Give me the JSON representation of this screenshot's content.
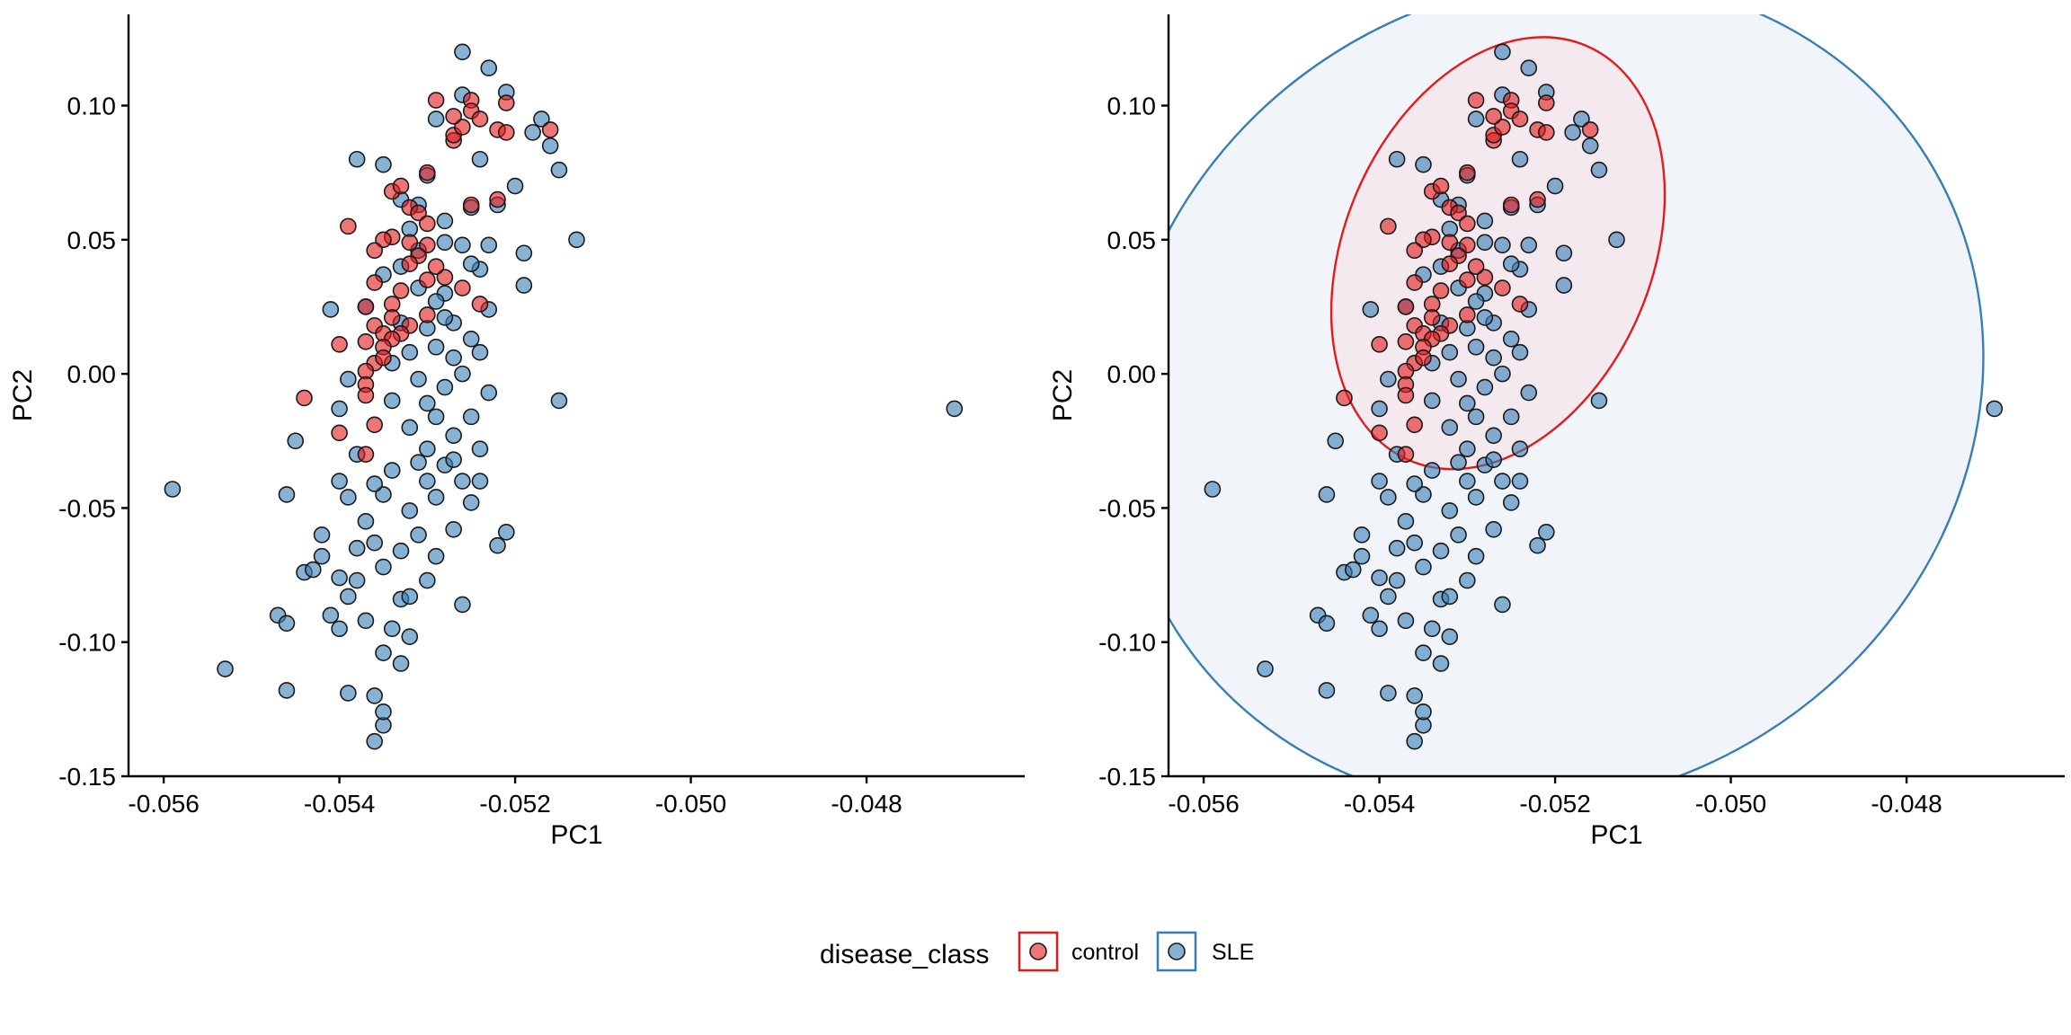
{
  "chart_data": [
    {
      "type": "scatter",
      "xlabel": "PC1",
      "ylabel": "PC2",
      "xlim": [
        -0.0564,
        -0.0462
      ],
      "ylim": [
        -0.15,
        0.134
      ],
      "x_ticks": [
        -0.056,
        -0.054,
        -0.052,
        -0.05,
        -0.048
      ],
      "x_tick_labels": [
        "-0.056",
        "-0.054",
        "-0.052",
        "-0.050",
        "-0.048"
      ],
      "y_ticks": [
        -0.15,
        -0.1,
        -0.05,
        0.0,
        0.05,
        0.1
      ],
      "y_tick_labels": [
        "-0.15",
        "-0.10",
        "-0.05",
        "0.00",
        "0.05",
        "0.10"
      ],
      "grid": false,
      "ellipses": false,
      "series": [
        {
          "name": "control",
          "color": "#E41A1C",
          "points": []
        },
        {
          "name": "SLE",
          "color": "#377EB8",
          "points": []
        }
      ]
    },
    {
      "type": "scatter",
      "xlabel": "PC1",
      "ylabel": "PC2",
      "xlim": [
        -0.0564,
        -0.0462
      ],
      "ylim": [
        -0.15,
        0.134
      ],
      "x_ticks": [
        -0.056,
        -0.054,
        -0.052,
        -0.05,
        -0.048
      ],
      "x_tick_labels": [
        "-0.056",
        "-0.054",
        "-0.052",
        "-0.050",
        "-0.048"
      ],
      "y_ticks": [
        -0.15,
        -0.1,
        -0.05,
        0.0,
        0.05,
        0.1
      ],
      "y_tick_labels": [
        "-0.15",
        "-0.10",
        "-0.05",
        "0.00",
        "0.05",
        "0.10"
      ],
      "grid": false,
      "ellipses": true,
      "series": [
        {
          "name": "control",
          "color": "#E41A1C",
          "points": []
        },
        {
          "name": "SLE",
          "color": "#377EB8",
          "points": []
        }
      ]
    }
  ],
  "shared_points": {
    "control": [
      [
        -0.0525,
        0.102
      ],
      [
        -0.0522,
        0.091
      ],
      [
        -0.0516,
        0.091
      ],
      [
        -0.0529,
        0.102
      ],
      [
        -0.0525,
        0.098
      ],
      [
        -0.0521,
        0.101
      ],
      [
        -0.0524,
        0.095
      ],
      [
        -0.0527,
        0.087
      ],
      [
        -0.0527,
        0.089
      ],
      [
        -0.0526,
        0.092
      ],
      [
        -0.053,
        0.075
      ],
      [
        -0.0522,
        0.065
      ],
      [
        -0.0525,
        0.063
      ],
      [
        -0.0534,
        0.068
      ],
      [
        -0.0532,
        0.062
      ],
      [
        -0.0531,
        0.06
      ],
      [
        -0.053,
        0.056
      ],
      [
        -0.0539,
        0.055
      ],
      [
        -0.0534,
        0.051
      ],
      [
        -0.0535,
        0.05
      ],
      [
        -0.0532,
        0.049
      ],
      [
        -0.053,
        0.048
      ],
      [
        -0.0536,
        0.046
      ],
      [
        -0.0531,
        0.044
      ],
      [
        -0.0528,
        0.036
      ],
      [
        -0.053,
        0.035
      ],
      [
        -0.0536,
        0.034
      ],
      [
        -0.0533,
        0.031
      ],
      [
        -0.0534,
        0.026
      ],
      [
        -0.0537,
        0.025
      ],
      [
        -0.0534,
        0.021
      ],
      [
        -0.0532,
        0.018
      ],
      [
        -0.0536,
        0.018
      ],
      [
        -0.0535,
        0.015
      ],
      [
        -0.0533,
        0.015
      ],
      [
        -0.0534,
        0.013
      ],
      [
        -0.0537,
        0.012
      ],
      [
        -0.054,
        0.011
      ],
      [
        -0.0535,
        0.01
      ],
      [
        -0.0536,
        0.004
      ],
      [
        -0.0537,
        0.001
      ],
      [
        -0.0537,
        -0.004
      ],
      [
        -0.0537,
        -0.008
      ],
      [
        -0.0544,
        -0.009
      ],
      [
        -0.0536,
        -0.019
      ],
      [
        -0.054,
        -0.022
      ],
      [
        -0.0537,
        -0.03
      ],
      [
        -0.0526,
        0.032
      ],
      [
        -0.0524,
        0.026
      ],
      [
        -0.053,
        0.022
      ],
      [
        -0.0521,
        0.09
      ],
      [
        -0.0527,
        0.096
      ],
      [
        -0.0533,
        0.07
      ],
      [
        -0.0532,
        0.041
      ],
      [
        -0.0529,
        0.04
      ],
      [
        -0.0535,
        0.006
      ]
    ],
    "SLE": [
      [
        -0.0559,
        -0.043
      ],
      [
        -0.0553,
        -0.11
      ],
      [
        -0.0547,
        -0.09
      ],
      [
        -0.0546,
        -0.093
      ],
      [
        -0.0546,
        -0.118
      ],
      [
        -0.0546,
        -0.045
      ],
      [
        -0.0545,
        -0.025
      ],
      [
        -0.0544,
        -0.074
      ],
      [
        -0.0543,
        -0.073
      ],
      [
        -0.0542,
        -0.068
      ],
      [
        -0.0542,
        -0.06
      ],
      [
        -0.0541,
        -0.09
      ],
      [
        -0.0541,
        0.024
      ],
      [
        -0.054,
        -0.076
      ],
      [
        -0.054,
        -0.095
      ],
      [
        -0.054,
        -0.013
      ],
      [
        -0.054,
        -0.04
      ],
      [
        -0.0539,
        -0.046
      ],
      [
        -0.0539,
        -0.083
      ],
      [
        -0.0539,
        -0.119
      ],
      [
        -0.0538,
        0.08
      ],
      [
        -0.0538,
        -0.065
      ],
      [
        -0.0538,
        -0.077
      ],
      [
        -0.0538,
        -0.03
      ],
      [
        -0.0537,
        -0.092
      ],
      [
        -0.0537,
        -0.055
      ],
      [
        -0.0536,
        -0.137
      ],
      [
        -0.0536,
        -0.12
      ],
      [
        -0.0535,
        -0.131
      ],
      [
        -0.0535,
        -0.126
      ],
      [
        -0.0535,
        -0.104
      ],
      [
        -0.0535,
        0.078
      ],
      [
        -0.0535,
        -0.072
      ],
      [
        -0.0535,
        -0.045
      ],
      [
        -0.0534,
        -0.036
      ],
      [
        -0.0534,
        -0.095
      ],
      [
        -0.0534,
        -0.01
      ],
      [
        -0.0533,
        -0.084
      ],
      [
        -0.0533,
        -0.108
      ],
      [
        -0.0533,
        0.04
      ],
      [
        -0.0533,
        0.065
      ],
      [
        -0.0532,
        -0.02
      ],
      [
        -0.0532,
        -0.051
      ],
      [
        -0.0532,
        -0.083
      ],
      [
        -0.0532,
        -0.098
      ],
      [
        -0.0532,
        0.054
      ],
      [
        -0.0531,
        -0.002
      ],
      [
        -0.0531,
        -0.033
      ],
      [
        -0.0531,
        -0.06
      ],
      [
        -0.0531,
        0.063
      ],
      [
        -0.053,
        -0.077
      ],
      [
        -0.053,
        -0.011
      ],
      [
        -0.053,
        0.074
      ],
      [
        -0.053,
        -0.028
      ],
      [
        -0.0529,
        0.01
      ],
      [
        -0.0529,
        -0.046
      ],
      [
        -0.0529,
        -0.068
      ],
      [
        -0.0529,
        0.095
      ],
      [
        -0.0528,
        -0.034
      ],
      [
        -0.0528,
        0.049
      ],
      [
        -0.0528,
        -0.005
      ],
      [
        -0.0528,
        0.03
      ],
      [
        -0.0527,
        0.019
      ],
      [
        -0.0527,
        -0.058
      ],
      [
        -0.0527,
        -0.023
      ],
      [
        -0.0526,
        0.12
      ],
      [
        -0.0526,
        -0.086
      ],
      [
        -0.0526,
        0.104
      ],
      [
        -0.0526,
        -0.04
      ],
      [
        -0.0526,
        0.048
      ],
      [
        -0.0525,
        0.062
      ],
      [
        -0.0525,
        0.013
      ],
      [
        -0.0525,
        -0.016
      ],
      [
        -0.0524,
        0.039
      ],
      [
        -0.0524,
        -0.028
      ],
      [
        -0.0524,
        0.08
      ],
      [
        -0.0523,
        0.114
      ],
      [
        -0.0523,
        -0.007
      ],
      [
        -0.0523,
        0.024
      ],
      [
        -0.0522,
        0.063
      ],
      [
        -0.0522,
        -0.064
      ],
      [
        -0.0521,
        0.105
      ],
      [
        -0.0521,
        -0.059
      ],
      [
        -0.052,
        0.07
      ],
      [
        -0.0519,
        0.045
      ],
      [
        -0.0519,
        0.033
      ],
      [
        -0.0518,
        0.09
      ],
      [
        -0.0517,
        0.095
      ],
      [
        -0.0516,
        0.085
      ],
      [
        -0.0515,
        0.076
      ],
      [
        -0.0515,
        -0.01
      ],
      [
        -0.0513,
        0.05
      ],
      [
        -0.047,
        -0.013
      ],
      [
        -0.0537,
        0.025
      ],
      [
        -0.0536,
        -0.063
      ],
      [
        -0.0534,
        0.004
      ],
      [
        -0.0533,
        0.019
      ],
      [
        -0.0531,
        0.032
      ],
      [
        -0.053,
        0.017
      ],
      [
        -0.0529,
        -0.016
      ],
      [
        -0.0528,
        0.057
      ],
      [
        -0.0527,
        0.006
      ],
      [
        -0.0525,
        -0.048
      ],
      [
        -0.0524,
        0.008
      ],
      [
        -0.0523,
        0.048
      ],
      [
        -0.0536,
        -0.041
      ],
      [
        -0.0533,
        -0.066
      ],
      [
        -0.0532,
        0.008
      ],
      [
        -0.053,
        -0.04
      ],
      [
        -0.0528,
        0.021
      ],
      [
        -0.0526,
        0.0
      ],
      [
        -0.0524,
        -0.04
      ],
      [
        -0.0539,
        -0.002
      ],
      [
        -0.0535,
        0.037
      ],
      [
        -0.0531,
        0.046
      ],
      [
        -0.0529,
        0.027
      ],
      [
        -0.0527,
        -0.032
      ],
      [
        -0.0525,
        0.041
      ]
    ]
  },
  "ellipses": {
    "control": {
      "center": [
        -0.05265,
        0.045
      ],
      "rx_data": 0.00175,
      "ry_data": 0.084,
      "rotate_deg": 23,
      "color": "#E41A1C",
      "fill": "#F3E9EE"
    },
    "SLE": {
      "center": [
        -0.05205,
        -0.007
      ],
      "rx_data": 0.00505,
      "ry_data": 0.15,
      "rotate_deg": -32,
      "color": "#377EB8",
      "fill": "#F1F5FA"
    }
  },
  "legend": {
    "title": "disease_class",
    "items": [
      {
        "label": "control",
        "color": "#E41A1C"
      },
      {
        "label": "SLE",
        "color": "#377EB8"
      }
    ]
  }
}
